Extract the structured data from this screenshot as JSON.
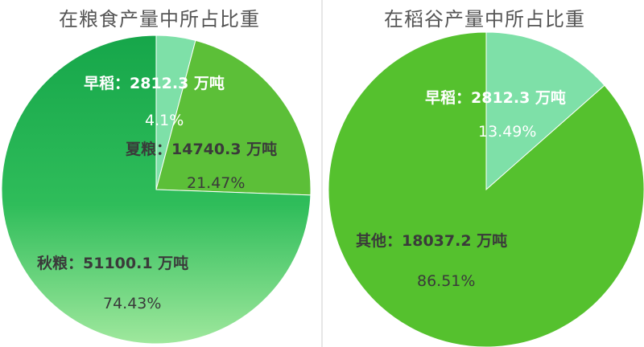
{
  "colors": {
    "title": "#555555",
    "light_green": "#7ee0a8",
    "mid_green": "#5cbf38",
    "dark_green": "#1aa84f",
    "bright_green": "#55c12e",
    "label_white": "#ffffff",
    "label_dark": "#3a3a3a"
  },
  "chart_data": [
    {
      "type": "pie",
      "title": "在粮食产量中所占比重",
      "slices": [
        {
          "label": "早稻：2812.3 万吨",
          "value": 2812.3,
          "percent_label": "4.1%",
          "percent": 4.1
        },
        {
          "label": "夏粮：14740.3 万吨",
          "value": 14740.3,
          "percent_label": "21.47%",
          "percent": 21.47
        },
        {
          "label": "秋粮：51100.1 万吨",
          "value": 51100.1,
          "percent_label": "74.43%",
          "percent": 74.43
        }
      ]
    },
    {
      "type": "pie",
      "title": "在稻谷产量中所占比重",
      "slices": [
        {
          "label": "早稻：2812.3 万吨",
          "value": 2812.3,
          "percent_label": "13.49%",
          "percent": 13.49
        },
        {
          "label": "其他：18037.2 万吨",
          "value": 18037.2,
          "percent_label": "86.51%",
          "percent": 86.51
        }
      ]
    }
  ]
}
